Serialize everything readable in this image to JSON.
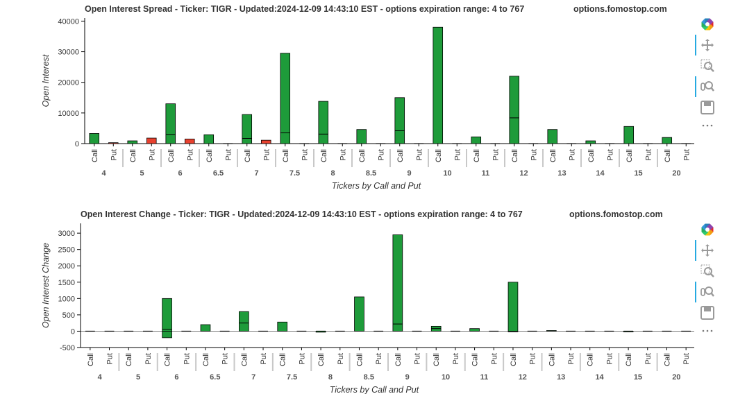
{
  "charts": [
    {
      "title": "Open Interest Spread - Ticker: TIGR - Updated:2024-12-09 14:43:10 EST - options expiration range: 4 to 767",
      "site": "options.fomostop.com",
      "xlabel": "Tickers by Call and Put",
      "ylabel": "Open Interest"
    },
    {
      "title": "Open Interest Change - Ticker: TIGR - Updated:2024-12-09 14:43:10 EST - options expiration range: 4 to 767",
      "site": "options.fomostop.com",
      "xlabel": "Tickers by Call and Put",
      "ylabel": "Open Interest Change"
    }
  ],
  "toolbar_icons": [
    "bokeh-logo-icon",
    "pan-icon",
    "box-zoom-icon",
    "wheel-zoom-icon",
    "save-icon",
    "more-icon"
  ],
  "colors": {
    "call": "#1e9b3a",
    "put": "#e8412f",
    "outline": "#000000"
  },
  "chart_data": [
    {
      "type": "bar",
      "title": "Open Interest Spread - Ticker: TIGR - Updated:2024-12-09 14:43:10 EST - options expiration range: 4 to 767",
      "xlabel": "Tickers by Call and Put",
      "ylabel": "Open Interest",
      "ylim": [
        0,
        41000
      ],
      "yticks": [
        0,
        10000,
        20000,
        30000,
        40000
      ],
      "groups": [
        "4",
        "5",
        "6",
        "6.5",
        "7",
        "7.5",
        "8",
        "8.5",
        "9",
        "10",
        "11",
        "12",
        "13",
        "14",
        "15",
        "20"
      ],
      "subcategories": [
        "Call",
        "Put"
      ],
      "series": [
        {
          "name": "Call",
          "values": [
            3300,
            900,
            13000,
            2900,
            9500,
            29500,
            13800,
            4600,
            15000,
            38000,
            2200,
            22000,
            4600,
            900,
            5600,
            2000
          ]
        },
        {
          "name": "Put",
          "values": [
            300,
            1800,
            1500,
            0,
            1100,
            0,
            0,
            0,
            0,
            0,
            0,
            0,
            0,
            0,
            0,
            0
          ]
        }
      ],
      "segments": [
        {
          "group": "6",
          "sub": "Call",
          "y": 3000
        },
        {
          "group": "7",
          "sub": "Call",
          "y": 1700
        },
        {
          "group": "7.5",
          "sub": "Call",
          "y": 3500
        },
        {
          "group": "8",
          "sub": "Call",
          "y": 3100
        },
        {
          "group": "9",
          "sub": "Call",
          "y": 4200
        },
        {
          "group": "12",
          "sub": "Call",
          "y": 8400
        }
      ],
      "grid": false,
      "legend": "none"
    },
    {
      "type": "bar",
      "title": "Open Interest Change - Ticker: TIGR - Updated:2024-12-09 14:43:10 EST - options expiration range: 4 to 767",
      "xlabel": "Tickers by Call and Put",
      "ylabel": "Open Interest Change",
      "ylim": [
        -500,
        3300
      ],
      "yticks": [
        -500,
        0,
        500,
        1000,
        1500,
        2000,
        2500,
        3000
      ],
      "groups": [
        "4",
        "5",
        "6",
        "6.5",
        "7",
        "7.5",
        "8",
        "8.5",
        "9",
        "10",
        "11",
        "12",
        "13",
        "14",
        "15",
        "20"
      ],
      "subcategories": [
        "Call",
        "Put"
      ],
      "series": [
        {
          "name": "Call",
          "values": [
            0,
            0,
            1000,
            200,
            600,
            280,
            0,
            1050,
            2950,
            150,
            80,
            1500,
            20,
            0,
            0,
            0
          ]
        },
        {
          "name": "Put",
          "values": [
            0,
            0,
            0,
            0,
            0,
            0,
            0,
            0,
            0,
            0,
            0,
            0,
            0,
            0,
            0,
            0
          ]
        }
      ],
      "negatives": [
        {
          "group": "6",
          "sub": "Call",
          "y": -200
        },
        {
          "group": "8",
          "sub": "Call",
          "y": -30
        },
        {
          "group": "12",
          "sub": "Call",
          "y": -20
        },
        {
          "group": "15",
          "sub": "Call",
          "y": -20
        }
      ],
      "segments": [
        {
          "group": "6",
          "sub": "Call",
          "y": 60
        },
        {
          "group": "7",
          "sub": "Call",
          "y": 250
        },
        {
          "group": "9",
          "sub": "Call",
          "y": 220
        },
        {
          "group": "10",
          "sub": "Call",
          "y": 80
        }
      ],
      "grid": false,
      "legend": "none"
    }
  ]
}
